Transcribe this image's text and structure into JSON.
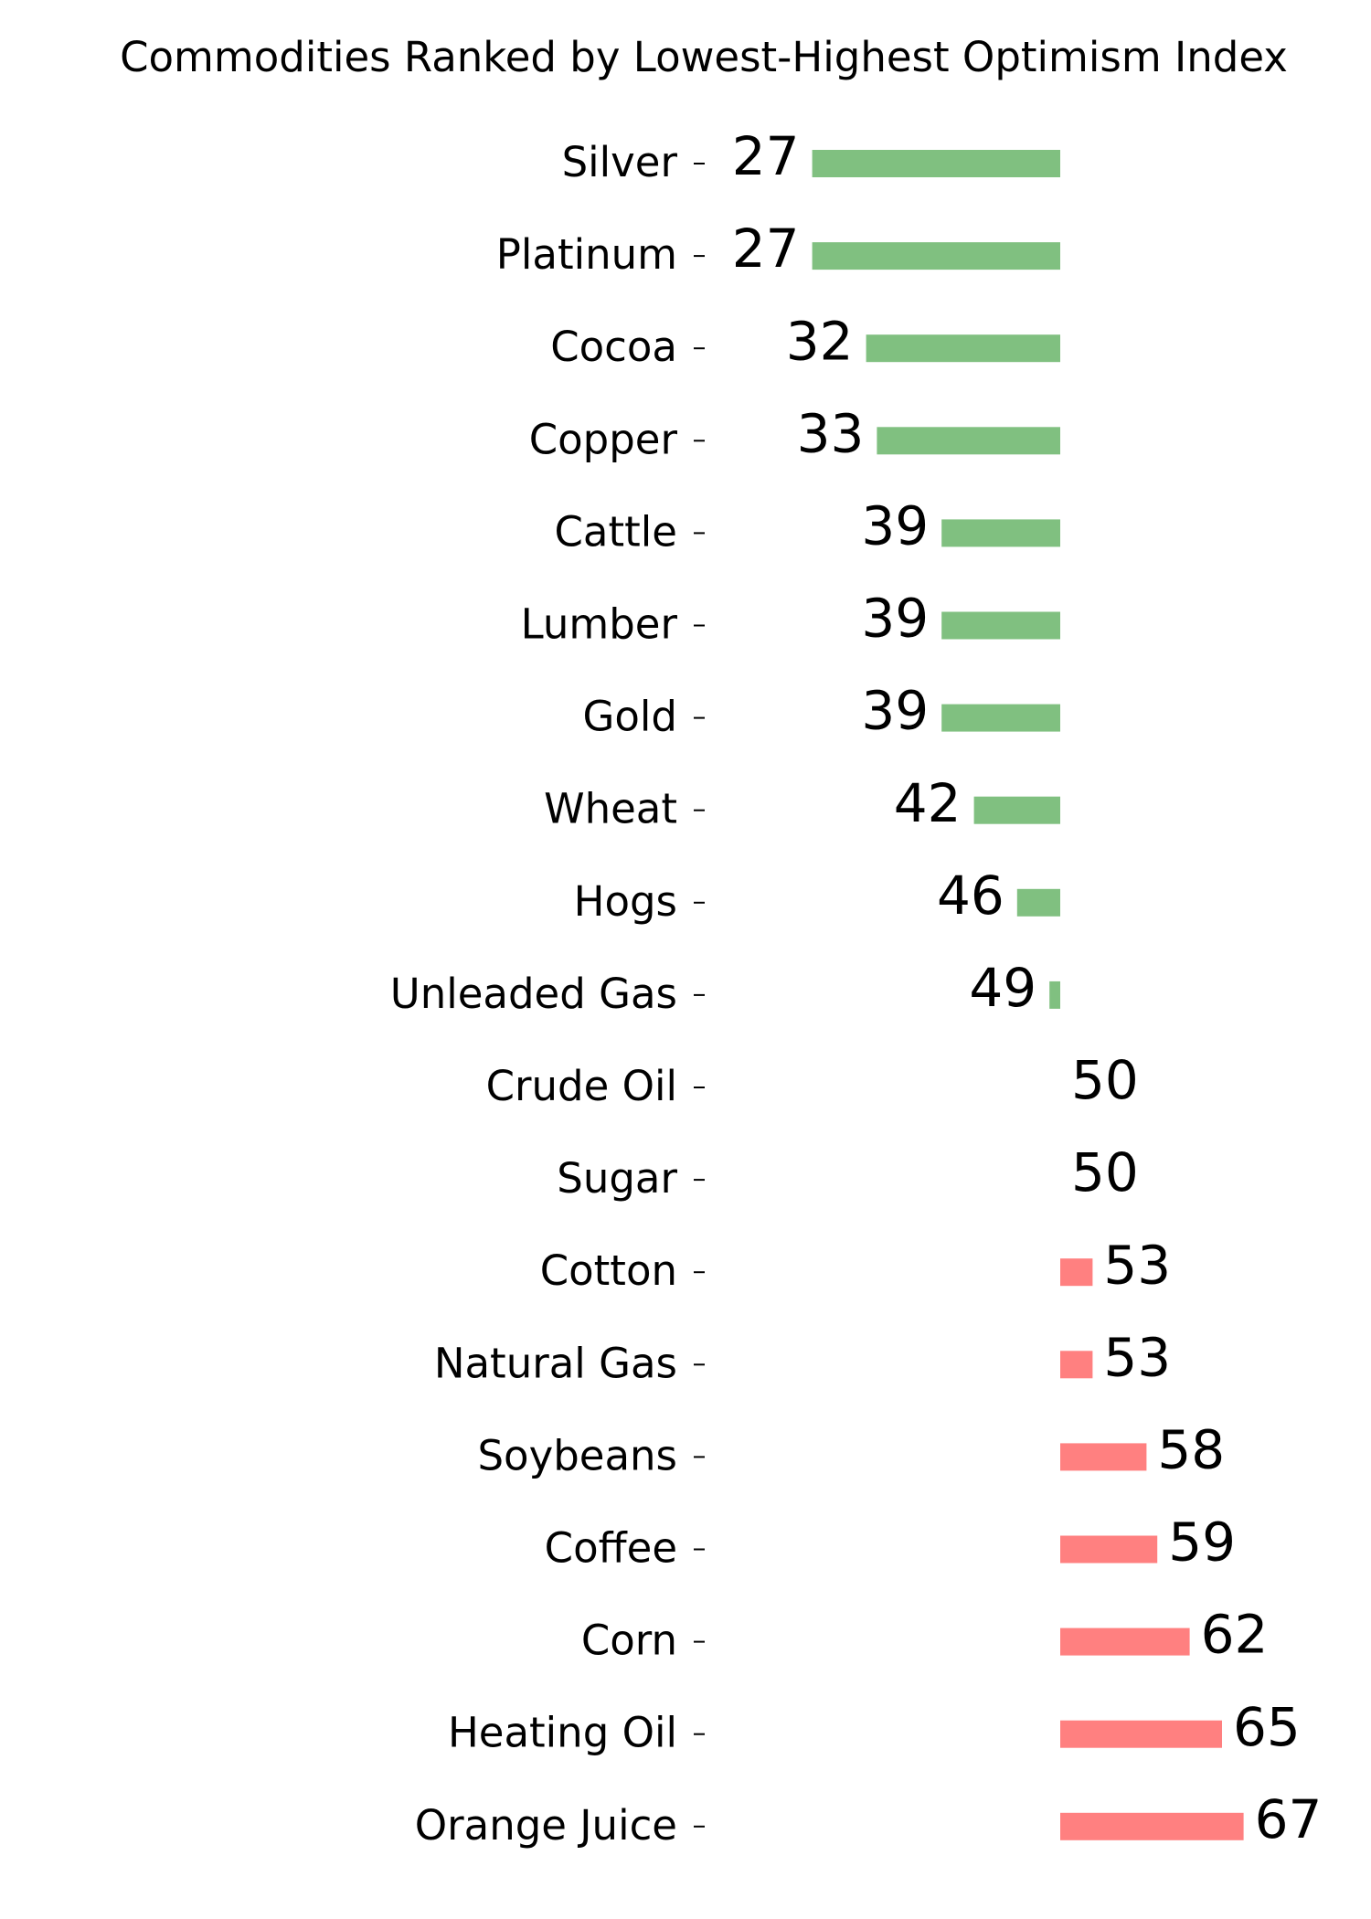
{
  "chart_data": {
    "type": "diverging-bar",
    "title": "Commodities Ranked by Lowest-Highest Optimism Index",
    "categories": [
      "Silver",
      "Platinum",
      "Cocoa",
      "Copper",
      "Cattle",
      "Lumber",
      "Gold",
      "Wheat",
      "Hogs",
      "Unleaded Gas",
      "Crude Oil",
      "Sugar",
      "Cotton",
      "Natural Gas",
      "Soybeans",
      "Coffee",
      "Corn",
      "Heating Oil",
      "Orange Juice"
    ],
    "values": [
      27,
      27,
      32,
      33,
      39,
      39,
      39,
      42,
      46,
      49,
      50,
      50,
      53,
      53,
      58,
      59,
      62,
      65,
      67
    ],
    "baseline": 50,
    "xlim": [
      20,
      75
    ],
    "color_below": "#80c080",
    "color_above": "#ff8080",
    "label_color_below": "#008000",
    "label_color_above": "#ff0000"
  }
}
